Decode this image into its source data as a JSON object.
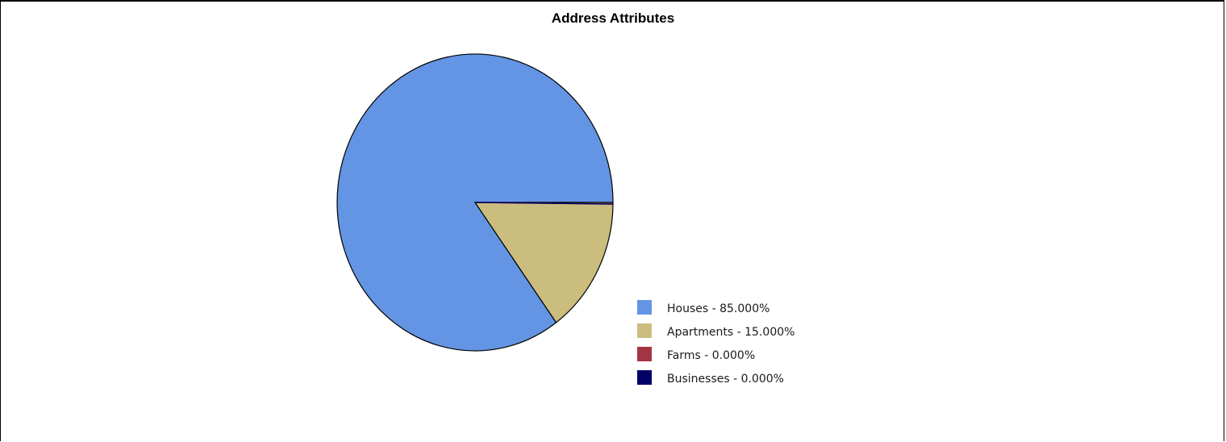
{
  "chart_data": {
    "type": "pie",
    "title": "Address Attributes",
    "slices": [
      {
        "label": "Houses",
        "value": 85.0,
        "color": "#6495e4",
        "legend": "Houses - 85.000%"
      },
      {
        "label": "Apartments",
        "value": 15.0,
        "color": "#cbbd7e",
        "legend": "Apartments - 15.000%"
      },
      {
        "label": "Farms",
        "value": 0.0,
        "color": "#a33444",
        "legend": "Farms - 0.000%"
      },
      {
        "label": "Businesses",
        "value": 0.0,
        "color": "#000066",
        "legend": "Businesses - 0.000%"
      }
    ],
    "legend_position": "bottom-right"
  }
}
